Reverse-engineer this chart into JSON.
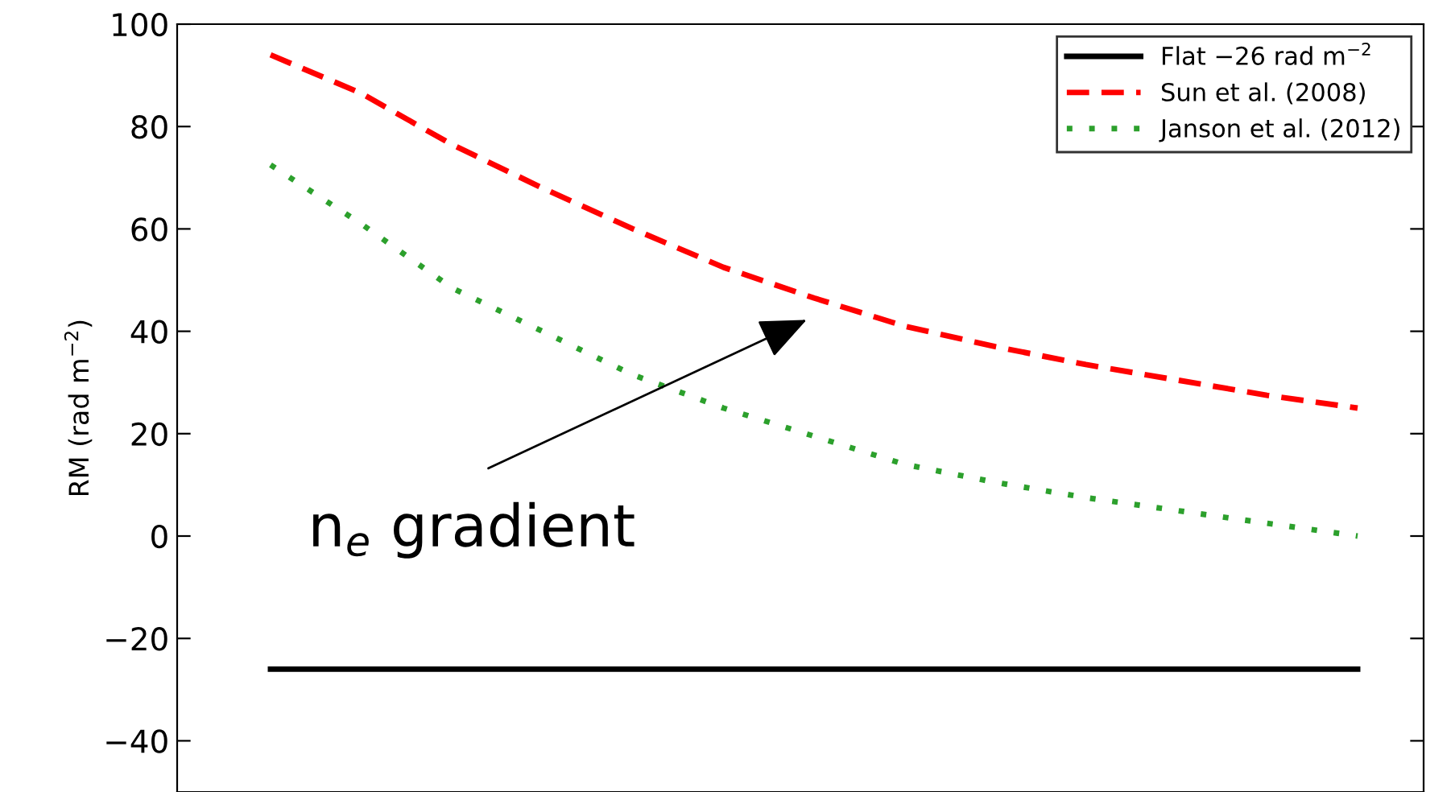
{
  "chart_data": {
    "type": "line",
    "ylabel": "RM (rad m$^{−2}$)",
    "categories": [
      null,
      null,
      null,
      null,
      null,
      null,
      null,
      null,
      null,
      null,
      null,
      null,
      null
    ],
    "series": [
      {
        "name": "Flat −26 rad m$^{−2}$",
        "color": "#000000",
        "line_style": "solid",
        "values": [
          -26,
          -26,
          -26,
          -26,
          -26,
          -26,
          -26,
          -26,
          -26,
          -26,
          -26,
          -26,
          -26
        ]
      },
      {
        "name": "Sun et al. (2008)",
        "color": "#ff0000",
        "line_style": "dashed",
        "values": [
          94,
          86.5,
          76.5,
          68,
          60,
          52.5,
          46.5,
          41,
          37,
          33.5,
          30.5,
          27.5,
          25
        ]
      },
      {
        "name": "Janson et al. (2012)",
        "color": "#2ca02c",
        "line_style": "dotted",
        "values": [
          72.5,
          61,
          48.5,
          40,
          31.5,
          25,
          19.5,
          14,
          10.5,
          7.5,
          5,
          2.5,
          0
        ]
      }
    ],
    "ylim": [
      -50,
      100
    ],
    "yticks": [
      -40,
      -20,
      0,
      20,
      40,
      60,
      80,
      100
    ],
    "grid": false,
    "legend": "top right",
    "marker": "none",
    "annotations": [
      "n$_{e}$ gradient"
    ]
  }
}
